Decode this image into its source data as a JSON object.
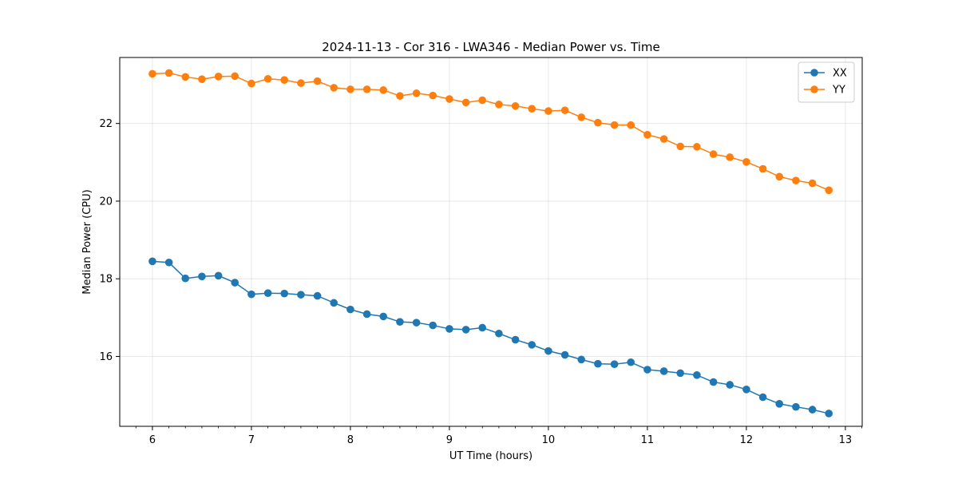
{
  "chart_data": {
    "type": "line",
    "title": "2024-11-13 - Cor 316 - LWA346 - Median Power vs. Time",
    "xlabel": "UT Time (hours)",
    "ylabel": "Median Power (CPU)",
    "xlim": [
      5.67,
      13.17
    ],
    "ylim": [
      14.2,
      23.7
    ],
    "xticks": [
      6,
      7,
      8,
      9,
      10,
      11,
      12,
      13
    ],
    "yticks": [
      16,
      18,
      20,
      22
    ],
    "grid": true,
    "legend_position": "top-right",
    "x": [
      6.0,
      6.167,
      6.333,
      6.5,
      6.667,
      6.833,
      7.0,
      7.167,
      7.333,
      7.5,
      7.667,
      7.833,
      8.0,
      8.167,
      8.333,
      8.5,
      8.667,
      8.833,
      9.0,
      9.167,
      9.333,
      9.5,
      9.667,
      9.833,
      10.0,
      10.167,
      10.333,
      10.5,
      10.667,
      10.833,
      11.0,
      11.167,
      11.333,
      11.5,
      11.667,
      11.833,
      12.0,
      12.167,
      12.333,
      12.5,
      12.667,
      12.833
    ],
    "series": [
      {
        "name": "XX",
        "color": "#1f77b4",
        "values": [
          18.45,
          18.42,
          18.01,
          18.06,
          18.08,
          17.9,
          17.6,
          17.63,
          17.62,
          17.59,
          17.56,
          17.38,
          17.21,
          17.09,
          17.03,
          16.89,
          16.87,
          16.8,
          16.71,
          16.69,
          16.74,
          16.59,
          16.43,
          16.3,
          16.14,
          16.04,
          15.92,
          15.81,
          15.8,
          15.85,
          15.66,
          15.62,
          15.57,
          15.52,
          15.34,
          15.27,
          15.15,
          14.95,
          14.78,
          14.7,
          14.63,
          14.53
        ]
      },
      {
        "name": "YY",
        "color": "#ff7f0e",
        "values": [
          23.28,
          23.3,
          23.2,
          23.14,
          23.21,
          23.22,
          23.03,
          23.15,
          23.12,
          23.04,
          23.09,
          22.92,
          22.88,
          22.88,
          22.86,
          22.71,
          22.78,
          22.72,
          22.63,
          22.54,
          22.6,
          22.49,
          22.45,
          22.38,
          22.32,
          22.34,
          22.16,
          22.02,
          21.96,
          21.96,
          21.71,
          21.6,
          21.41,
          21.4,
          21.21,
          21.13,
          21.01,
          20.83,
          20.63,
          20.53,
          20.46,
          20.28
        ]
      }
    ]
  }
}
